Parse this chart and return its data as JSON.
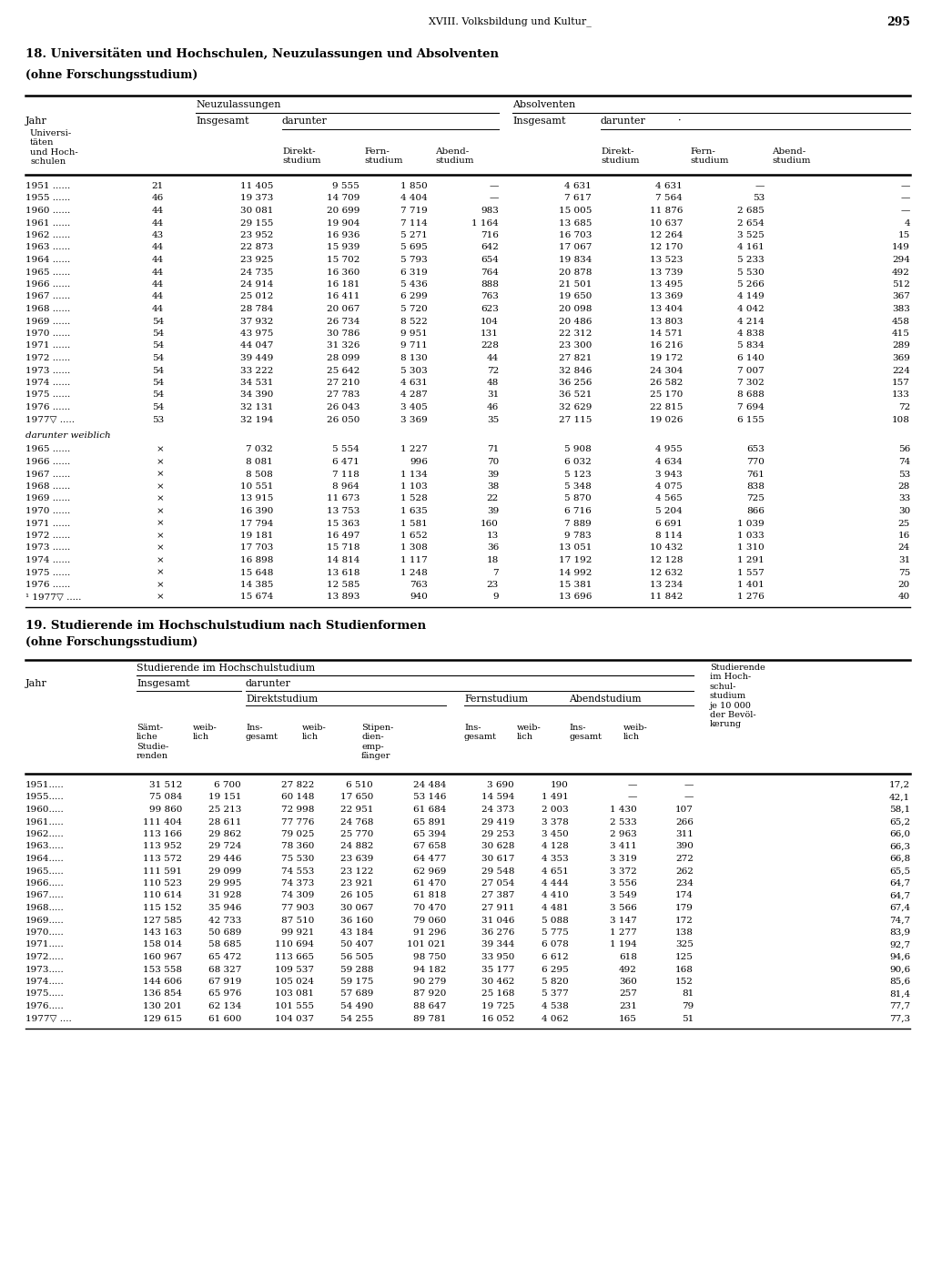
{
  "page_header": "XVIII. Volksbildung und Kultur_",
  "page_number": "295",
  "table1_title": "18. Universitäten und Hochschulen, Neuzulassungen und Absolventen",
  "table1_subtitle": "(ohne Forschungsstudium)",
  "table1_data": [
    [
      "1951 ......",
      "21",
      "11 405",
      "9 555",
      "1 850",
      "—",
      "4 631",
      "4 631",
      "—",
      "—"
    ],
    [
      "1955 ......",
      "46",
      "19 373",
      "14 709",
      "4 404",
      "—",
      "7 617",
      "7 564",
      "53",
      "—"
    ],
    [
      "1960 ......",
      "44",
      "30 081",
      "20 699",
      "7 719",
      "983",
      "15 005",
      "11 876",
      "2 685",
      "—"
    ],
    [
      "1961 ......",
      "44",
      "29 155",
      "19 904",
      "7 114",
      "1 164",
      "13 685",
      "10 637",
      "2 654",
      "4"
    ],
    [
      "1962 ......",
      "43",
      "23 952",
      "16 936",
      "5 271",
      "716",
      "16 703",
      "12 264",
      "3 525",
      "15"
    ],
    [
      "1963 ......",
      "44",
      "22 873",
      "15 939",
      "5 695",
      "642",
      "17 067",
      "12 170",
      "4 161",
      "149"
    ],
    [
      "1964 ......",
      "44",
      "23 925",
      "15 702",
      "5 793",
      "654",
      "19 834",
      "13 523",
      "5 233",
      "294"
    ],
    [
      "1965 ......",
      "44",
      "24 735",
      "16 360",
      "6 319",
      "764",
      "20 878",
      "13 739",
      "5 530",
      "492"
    ],
    [
      "1966 ......",
      "44",
      "24 914",
      "16 181",
      "5 436",
      "888",
      "21 501",
      "13 495",
      "5 266",
      "512"
    ],
    [
      "1967 ......",
      "44",
      "25 012",
      "16 411",
      "6 299",
      "763",
      "19 650",
      "13 369",
      "4 149",
      "367"
    ],
    [
      "1968 ......",
      "44",
      "28 784",
      "20 067",
      "5 720",
      "623",
      "20 098",
      "13 404",
      "4 042",
      "383"
    ],
    [
      "1969 ......",
      "54",
      "37 932",
      "26 734",
      "8 522",
      "104",
      "20 486",
      "13 803",
      "4 214",
      "458"
    ],
    [
      "1970 ......",
      "54",
      "43 975",
      "30 786",
      "9 951",
      "131",
      "22 312",
      "14 571",
      "4 838",
      "415"
    ],
    [
      "1971 ......",
      "54",
      "44 047",
      "31 326",
      "9 711",
      "228",
      "23 300",
      "16 216",
      "5 834",
      "289"
    ],
    [
      "1972 ......",
      "54",
      "39 449",
      "28 099",
      "8 130",
      "44",
      "27 821",
      "19 172",
      "6 140",
      "369"
    ],
    [
      "1973 ......",
      "54",
      "33 222",
      "25 642",
      "5 303",
      "72",
      "32 846",
      "24 304",
      "7 007",
      "224"
    ],
    [
      "1974 ......",
      "54",
      "34 531",
      "27 210",
      "4 631",
      "48",
      "36 256",
      "26 582",
      "7 302",
      "157"
    ],
    [
      "1975 ......",
      "54",
      "34 390",
      "27 783",
      "4 287",
      "31",
      "36 521",
      "25 170",
      "8 688",
      "133"
    ],
    [
      "1976 ......",
      "54",
      "32 131",
      "26 043",
      "3 405",
      "46",
      "32 629",
      "22 815",
      "7 694",
      "72"
    ],
    [
      "1977▽ .....",
      "53",
      "32 194",
      "26 050",
      "3 369",
      "35",
      "27 115",
      "19 026",
      "6 155",
      "108"
    ]
  ],
  "table1_weiblich_header": "darunter weiblich",
  "table1_weiblich_data": [
    [
      "1965 ......",
      "×",
      "7 032",
      "5 554",
      "1 227",
      "71",
      "5 908",
      "4 955",
      "653",
      "56"
    ],
    [
      "1966 ......",
      "×",
      "8 081",
      "6 471",
      "996",
      "70",
      "6 032",
      "4 634",
      "770",
      "74"
    ],
    [
      "1967 ......",
      "×",
      "8 508",
      "7 118",
      "1 134",
      "39",
      "5 123",
      "3 943",
      "761",
      "53"
    ],
    [
      "1968 ......",
      "×",
      "10 551",
      "8 964",
      "1 103",
      "38",
      "5 348",
      "4 075",
      "838",
      "28"
    ],
    [
      "1969 ......",
      "×",
      "13 915",
      "11 673",
      "1 528",
      "22",
      "5 870",
      "4 565",
      "725",
      "33"
    ],
    [
      "1970 ......",
      "×",
      "16 390",
      "13 753",
      "1 635",
      "39",
      "6 716",
      "5 204",
      "866",
      "30"
    ],
    [
      "1971 ......",
      "×",
      "17 794",
      "15 363",
      "1 581",
      "160",
      "7 889",
      "6 691",
      "1 039",
      "25"
    ],
    [
      "1972 ......",
      "×",
      "19 181",
      "16 497",
      "1 652",
      "13",
      "9 783",
      "8 114",
      "1 033",
      "16"
    ],
    [
      "1973 ......",
      "×",
      "17 703",
      "15 718",
      "1 308",
      "36",
      "13 051",
      "10 432",
      "1 310",
      "24"
    ],
    [
      "1974 ......",
      "×",
      "16 898",
      "14 814",
      "1 117",
      "18",
      "17 192",
      "12 128",
      "1 291",
      "31"
    ],
    [
      "1975 ......",
      "×",
      "15 648",
      "13 618",
      "1 248",
      "7",
      "14 992",
      "12 632",
      "1 557",
      "75"
    ],
    [
      "1976 ......",
      "×",
      "14 385",
      "12 585",
      "763",
      "23",
      "15 381",
      "13 234",
      "1 401",
      "20"
    ],
    [
      "¹ 1977▽ .....",
      "×",
      "15 674",
      "13 893",
      "940",
      "9",
      "13 696",
      "11 842",
      "1 276",
      "40"
    ]
  ],
  "table2_title": "19. Studierende im Hochschulstudium nach Studienformen",
  "table2_subtitle": "(ohne Forschungsstudium)",
  "table2_data": [
    [
      "1951.....",
      "31 512",
      "6 700",
      "27 822",
      "6 510",
      "24 484",
      "3 690",
      "190",
      "—",
      "—",
      "17,2"
    ],
    [
      "1955.....",
      "75 084",
      "19 151",
      "60 148",
      "17 650",
      "53 146",
      "14 594",
      "1 491",
      "—",
      "—",
      "42,1"
    ],
    [
      "1960.....",
      "99 860",
      "25 213",
      "72 998",
      "22 951",
      "61 684",
      "24 373",
      "2 003",
      "1 430",
      "107",
      "58,1"
    ],
    [
      "1961.....",
      "111 404",
      "28 611",
      "77 776",
      "24 768",
      "65 891",
      "29 419",
      "3 378",
      "2 533",
      "266",
      "65,2"
    ],
    [
      "1962.....",
      "113 166",
      "29 862",
      "79 025",
      "25 770",
      "65 394",
      "29 253",
      "3 450",
      "2 963",
      "311",
      "66,0"
    ],
    [
      "1963.....",
      "113 952",
      "29 724",
      "78 360",
      "24 882",
      "67 658",
      "30 628",
      "4 128",
      "3 411",
      "390",
      "66,3"
    ],
    [
      "1964.....",
      "113 572",
      "29 446",
      "75 530",
      "23 639",
      "64 477",
      "30 617",
      "4 353",
      "3 319",
      "272",
      "66,8"
    ],
    [
      "1965.....",
      "111 591",
      "29 099",
      "74 553",
      "23 122",
      "62 969",
      "29 548",
      "4 651",
      "3 372",
      "262",
      "65,5"
    ],
    [
      "1966.....",
      "110 523",
      "29 995",
      "74 373",
      "23 921",
      "61 470",
      "27 054",
      "4 444",
      "3 556",
      "234",
      "64,7"
    ],
    [
      "1967.....",
      "110 614",
      "31 928",
      "74 309",
      "26 105",
      "61 818",
      "27 387",
      "4 410",
      "3 549",
      "174",
      "64,7"
    ],
    [
      "1968.....",
      "115 152",
      "35 946",
      "77 903",
      "30 067",
      "70 470",
      "27 911",
      "4 481",
      "3 566",
      "179",
      "67,4"
    ],
    [
      "1969.....",
      "127 585",
      "42 733",
      "87 510",
      "36 160",
      "79 060",
      "31 046",
      "5 088",
      "3 147",
      "172",
      "74,7"
    ],
    [
      "1970.....",
      "143 163",
      "50 689",
      "99 921",
      "43 184",
      "91 296",
      "36 276",
      "5 775",
      "1 277",
      "138",
      "83,9"
    ],
    [
      "1971.....",
      "158 014",
      "58 685",
      "110 694",
      "50 407",
      "101 021",
      "39 344",
      "6 078",
      "1 194",
      "325",
      "92,7"
    ],
    [
      "1972.....",
      "160 967",
      "65 472",
      "113 665",
      "56 505",
      "98 750",
      "33 950",
      "6 612",
      "618",
      "125",
      "94,6"
    ],
    [
      "1973.....",
      "153 558",
      "68 327",
      "109 537",
      "59 288",
      "94 182",
      "35 177",
      "6 295",
      "492",
      "168",
      "90,6"
    ],
    [
      "1974.....",
      "144 606",
      "67 919",
      "105 024",
      "59 175",
      "90 279",
      "30 462",
      "5 820",
      "360",
      "152",
      "85,6"
    ],
    [
      "1975.....",
      "136 854",
      "65 976",
      "103 081",
      "57 689",
      "87 920",
      "25 168",
      "5 377",
      "257",
      "81",
      "81,4"
    ],
    [
      "1976.....",
      "130 201",
      "62 134",
      "101 555",
      "54 490",
      "88 647",
      "19 725",
      "4 538",
      "231",
      "79",
      "77,7"
    ],
    [
      "1977▽ ....",
      "129 615",
      "61 600",
      "104 037",
      "54 255",
      "89 781",
      "16 052",
      "4 062",
      "165",
      "51",
      "77,3"
    ]
  ]
}
